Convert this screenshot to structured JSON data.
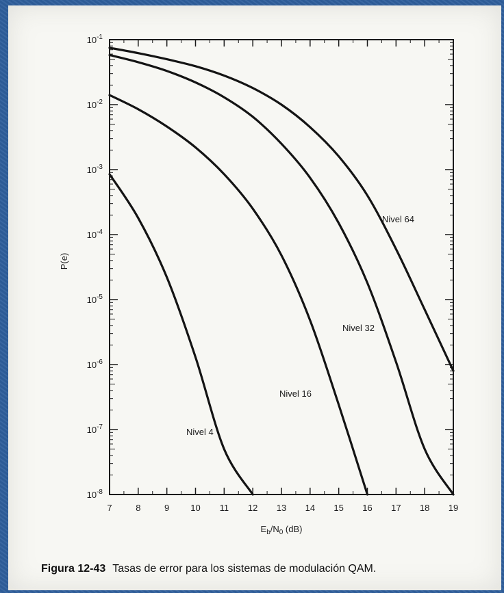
{
  "caption": {
    "figure_label": "Figura 12-43",
    "text": "Tasas de error para los sistemas de modulación QAM."
  },
  "chart_data": {
    "type": "line",
    "title": "",
    "xlabel": "Eb/N0 (dB)",
    "xlabel_parts": {
      "base": "E",
      "sub1": "b",
      "mid": "/N",
      "sub2": "0",
      "tail": " (dB)"
    },
    "ylabel": "P(e)",
    "xlim": [
      7,
      19
    ],
    "ylim": [
      1e-08,
      0.1
    ],
    "yscale": "log",
    "grid": false,
    "x_ticks": [
      7,
      8,
      9,
      10,
      11,
      12,
      13,
      14,
      15,
      16,
      17,
      18,
      19
    ],
    "y_ticks": [
      {
        "base": "10",
        "exp": "-1"
      },
      {
        "base": "10",
        "exp": "-2"
      },
      {
        "base": "10",
        "exp": "-3"
      },
      {
        "base": "10",
        "exp": "-4"
      },
      {
        "base": "10",
        "exp": "-5"
      },
      {
        "base": "10",
        "exp": "-6"
      },
      {
        "base": "10",
        "exp": "-7"
      },
      {
        "base": "10",
        "exp": "-8"
      }
    ],
    "series": [
      {
        "name": "Nivel 4",
        "points": [
          [
            7,
            0.00085
          ],
          [
            8,
            0.00018
          ],
          [
            9,
            2.2e-05
          ],
          [
            10,
            1.3e-06
          ],
          [
            11,
            5e-08
          ],
          [
            12,
            1e-08
          ]
        ]
      },
      {
        "name": "Nivel 16",
        "points": [
          [
            7,
            0.014
          ],
          [
            8,
            0.0085
          ],
          [
            9,
            0.0046
          ],
          [
            10,
            0.0022
          ],
          [
            11,
            0.00085
          ],
          [
            12,
            0.00025
          ],
          [
            13,
            4.8e-05
          ],
          [
            14,
            4.8e-06
          ],
          [
            15,
            2.4e-07
          ],
          [
            16,
            1e-08
          ]
        ]
      },
      {
        "name": "Nivel 32",
        "points": [
          [
            7,
            0.058
          ],
          [
            8,
            0.045
          ],
          [
            9,
            0.033
          ],
          [
            10,
            0.022
          ],
          [
            11,
            0.013
          ],
          [
            12,
            0.0065
          ],
          [
            13,
            0.0025
          ],
          [
            14,
            0.00075
          ],
          [
            15,
            0.00015
          ],
          [
            16,
            1.8e-05
          ],
          [
            17,
            1.1e-06
          ],
          [
            18,
            5e-08
          ],
          [
            19,
            1e-08
          ]
        ]
      },
      {
        "name": "Nivel 64",
        "points": [
          [
            7,
            0.075
          ],
          [
            8,
            0.062
          ],
          [
            9,
            0.05
          ],
          [
            10,
            0.039
          ],
          [
            11,
            0.028
          ],
          [
            12,
            0.018
          ],
          [
            13,
            0.01
          ],
          [
            14,
            0.0045
          ],
          [
            15,
            0.0016
          ],
          [
            16,
            0.0004
          ],
          [
            17,
            6e-05
          ],
          [
            18,
            7e-06
          ],
          [
            19,
            8e-07
          ]
        ]
      }
    ]
  }
}
